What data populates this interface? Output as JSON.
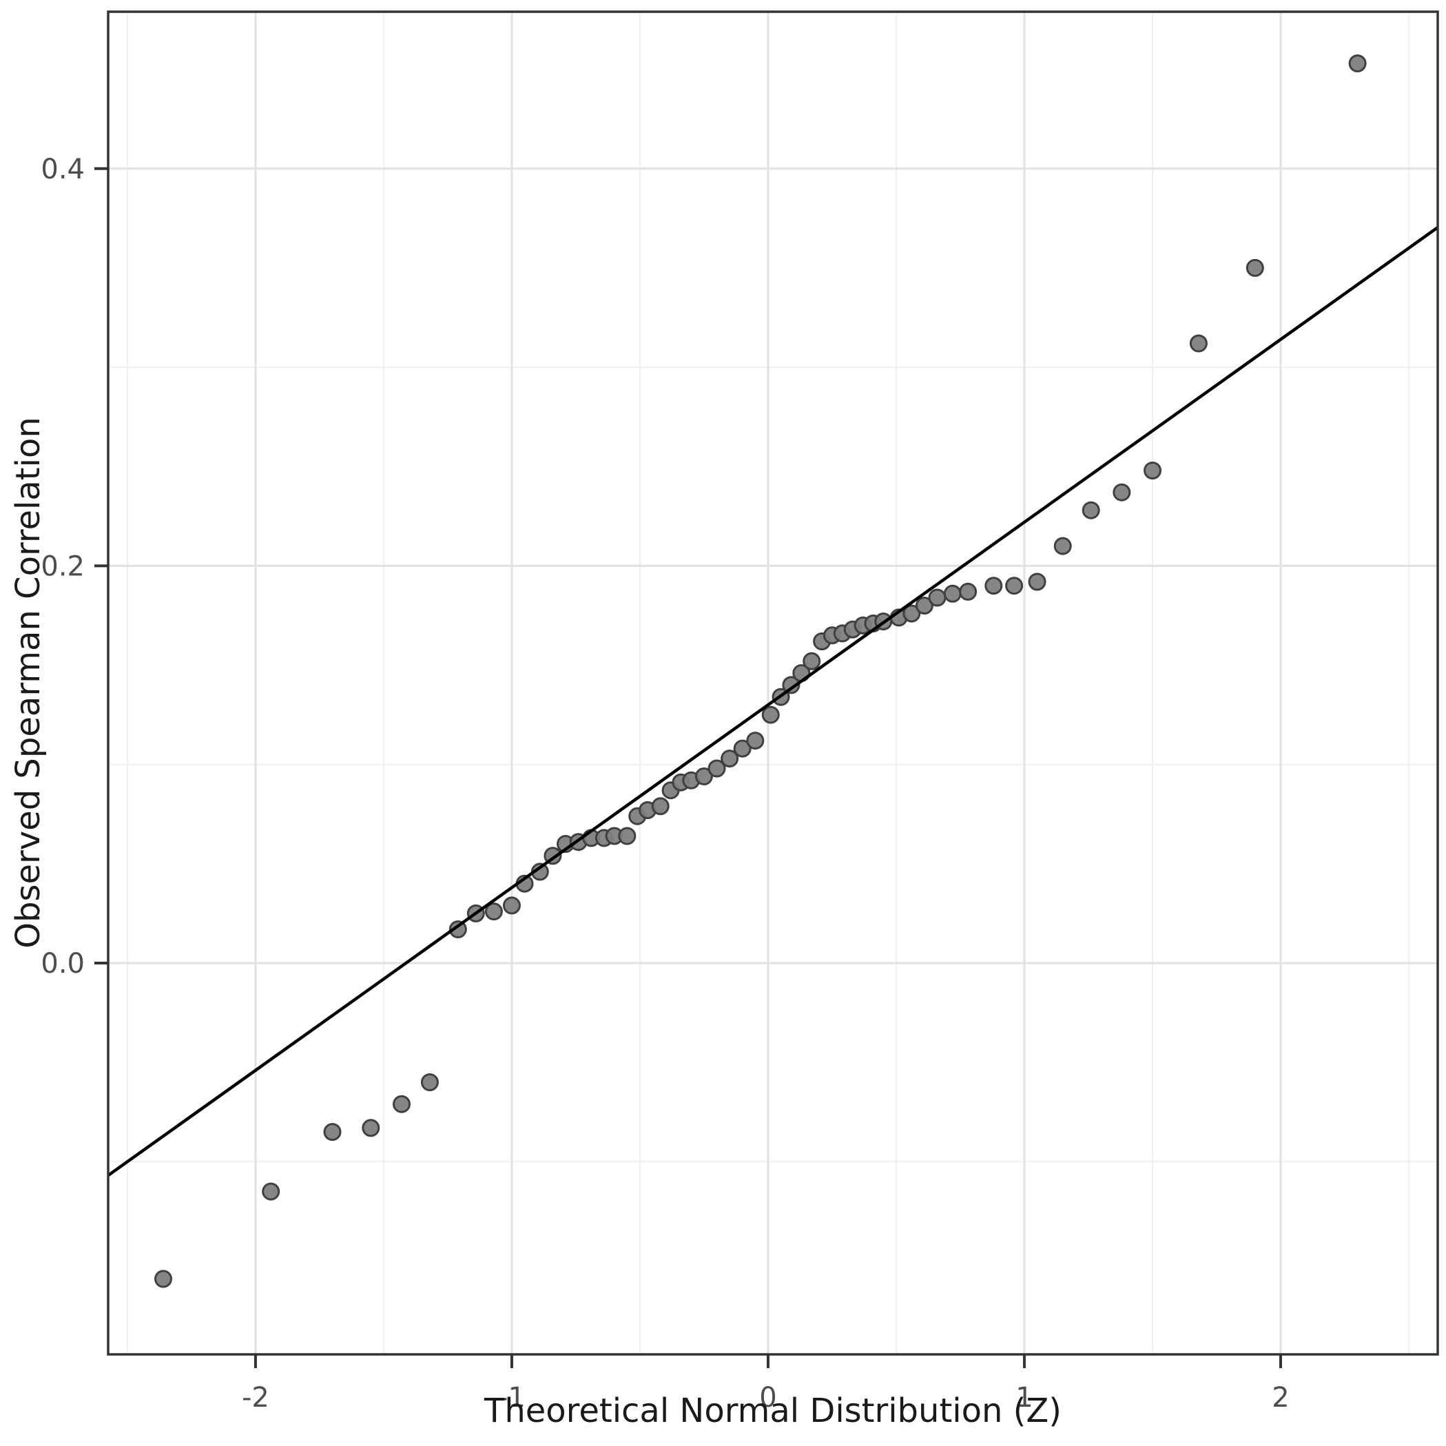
{
  "figure": {
    "background": "#ffffff"
  },
  "chart_data": {
    "type": "scatter",
    "title": "",
    "xlabel": "Theoretical Normal Distribution (Z)",
    "ylabel": "Observed Spearman Correlation",
    "xlim": [
      -2.575,
      2.613
    ],
    "ylim": [
      -0.197,
      0.479
    ],
    "grid": "major+minor",
    "legend": "none",
    "x_ticks": [
      {
        "value": -2,
        "label": "-2"
      },
      {
        "value": -1,
        "label": "-1"
      },
      {
        "value": 0,
        "label": "0"
      },
      {
        "value": 1,
        "label": "1"
      },
      {
        "value": 2,
        "label": "2"
      }
    ],
    "x_minor_ticks": [
      -2.5,
      -1.5,
      -0.5,
      0.5,
      1.5,
      2.5
    ],
    "y_ticks": [
      {
        "value": 0.0,
        "label": "0.0"
      },
      {
        "value": 0.2,
        "label": "0.2"
      },
      {
        "value": 0.4,
        "label": "0.4"
      }
    ],
    "y_minor_ticks": [
      -0.1,
      0.1,
      0.3
    ],
    "points": [
      [
        -2.36,
        -0.159
      ],
      [
        -1.94,
        -0.115
      ],
      [
        -1.7,
        -0.085
      ],
      [
        -1.55,
        -0.083
      ],
      [
        -1.43,
        -0.071
      ],
      [
        -1.32,
        -0.06
      ],
      [
        -1.21,
        0.017
      ],
      [
        -1.14,
        0.025
      ],
      [
        -1.07,
        0.026
      ],
      [
        -1.0,
        0.029
      ],
      [
        -0.95,
        0.04
      ],
      [
        -0.89,
        0.046
      ],
      [
        -0.84,
        0.054
      ],
      [
        -0.79,
        0.06
      ],
      [
        -0.74,
        0.061
      ],
      [
        -0.69,
        0.063
      ],
      [
        -0.64,
        0.063
      ],
      [
        -0.6,
        0.064
      ],
      [
        -0.55,
        0.064
      ],
      [
        -0.51,
        0.074
      ],
      [
        -0.47,
        0.077
      ],
      [
        -0.42,
        0.079
      ],
      [
        -0.38,
        0.087
      ],
      [
        -0.34,
        0.091
      ],
      [
        -0.3,
        0.092
      ],
      [
        -0.25,
        0.094
      ],
      [
        -0.2,
        0.098
      ],
      [
        -0.15,
        0.103
      ],
      [
        -0.1,
        0.108
      ],
      [
        -0.05,
        0.112
      ],
      [
        0.01,
        0.125
      ],
      [
        0.05,
        0.134
      ],
      [
        0.09,
        0.14
      ],
      [
        0.13,
        0.146
      ],
      [
        0.17,
        0.152
      ],
      [
        0.21,
        0.162
      ],
      [
        0.25,
        0.165
      ],
      [
        0.29,
        0.166
      ],
      [
        0.33,
        0.168
      ],
      [
        0.37,
        0.17
      ],
      [
        0.41,
        0.171
      ],
      [
        0.45,
        0.172
      ],
      [
        0.51,
        0.174
      ],
      [
        0.56,
        0.176
      ],
      [
        0.61,
        0.18
      ],
      [
        0.66,
        0.184
      ],
      [
        0.72,
        0.186
      ],
      [
        0.78,
        0.187
      ],
      [
        0.88,
        0.19
      ],
      [
        0.96,
        0.19
      ],
      [
        1.05,
        0.192
      ],
      [
        1.15,
        0.21
      ],
      [
        1.26,
        0.228
      ],
      [
        1.38,
        0.237
      ],
      [
        1.5,
        0.248
      ],
      [
        1.68,
        0.312
      ],
      [
        1.9,
        0.35
      ],
      [
        2.3,
        0.453
      ]
    ],
    "reference_line": {
      "intercept": 0.13,
      "slope": 0.092,
      "x_start": -2.575,
      "x_end": 2.613
    },
    "style": {
      "point_fill": "#808080",
      "point_stroke": "#404040",
      "line_color": "#000000",
      "grid_major": "#e3e3e3",
      "grid_minor": "#f1f1f1",
      "panel_border": "#333333",
      "tick_color": "#333333",
      "tick_label_color": "#4d4d4d",
      "title_color": "#1a1a1a",
      "background": "#ffffff"
    }
  }
}
